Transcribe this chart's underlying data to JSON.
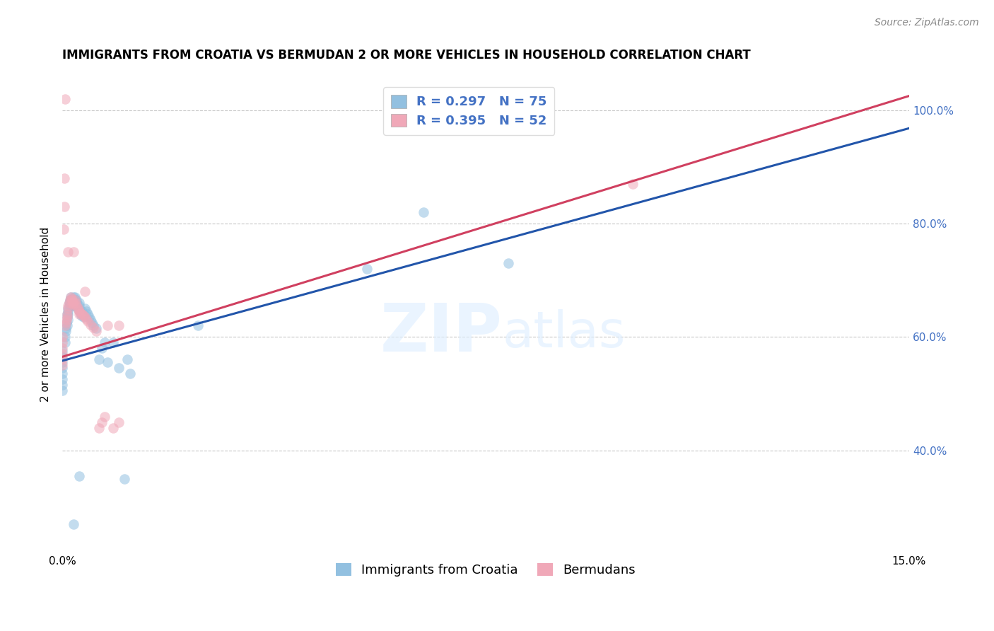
{
  "title": "IMMIGRANTS FROM CROATIA VS BERMUDAN 2 OR MORE VEHICLES IN HOUSEHOLD CORRELATION CHART",
  "source": "Source: ZipAtlas.com",
  "ylabel": "2 or more Vehicles in Household",
  "xlim": [
    0.0,
    0.15
  ],
  "ylim": [
    0.22,
    1.06
  ],
  "xtick_labels": [
    "0.0%",
    "15.0%"
  ],
  "ytick_labels": [
    "40.0%",
    "60.0%",
    "80.0%",
    "100.0%"
  ],
  "ytick_positions": [
    0.4,
    0.6,
    0.8,
    1.0
  ],
  "xtick_positions": [
    0.0,
    0.15
  ],
  "blue_R": 0.297,
  "blue_N": 75,
  "pink_R": 0.395,
  "pink_N": 52,
  "blue_color": "#92c0e0",
  "pink_color": "#f0a8b8",
  "blue_line_color": "#2255aa",
  "pink_line_color": "#d04060",
  "legend_label_blue": "Immigrants from Croatia",
  "legend_label_pink": "Bermudans",
  "watermark_zip": "ZIP",
  "watermark_atlas": "atlas",
  "background_color": "#ffffff",
  "blue_scatter_x": [
    0.0,
    0.0,
    0.0,
    0.0,
    0.0,
    0.0,
    0.0,
    0.0,
    0.0005,
    0.0005,
    0.0006,
    0.0006,
    0.0007,
    0.0008,
    0.0008,
    0.0009,
    0.001,
    0.001,
    0.001,
    0.001,
    0.0012,
    0.0012,
    0.0013,
    0.0013,
    0.0015,
    0.0015,
    0.0015,
    0.0016,
    0.0017,
    0.0018,
    0.0018,
    0.0019,
    0.002,
    0.002,
    0.0021,
    0.0022,
    0.0022,
    0.0023,
    0.0024,
    0.0025,
    0.0025,
    0.0026,
    0.0027,
    0.0028,
    0.003,
    0.003,
    0.0031,
    0.0032,
    0.0033,
    0.0035,
    0.0036,
    0.0037,
    0.004,
    0.0042,
    0.0045,
    0.0048,
    0.005,
    0.0052,
    0.0055,
    0.006,
    0.0065,
    0.007,
    0.0075,
    0.008,
    0.009,
    0.01,
    0.0115,
    0.012,
    0.024,
    0.054,
    0.064,
    0.079,
    0.011,
    0.003,
    0.002
  ],
  "blue_scatter_y": [
    0.575,
    0.565,
    0.555,
    0.545,
    0.535,
    0.525,
    0.515,
    0.505,
    0.6,
    0.59,
    0.615,
    0.61,
    0.625,
    0.62,
    0.64,
    0.635,
    0.65,
    0.645,
    0.64,
    0.63,
    0.66,
    0.655,
    0.665,
    0.66,
    0.67,
    0.665,
    0.66,
    0.655,
    0.66,
    0.665,
    0.66,
    0.655,
    0.67,
    0.665,
    0.66,
    0.665,
    0.67,
    0.66,
    0.655,
    0.66,
    0.665,
    0.658,
    0.652,
    0.648,
    0.66,
    0.655,
    0.648,
    0.642,
    0.638,
    0.645,
    0.64,
    0.635,
    0.65,
    0.645,
    0.64,
    0.635,
    0.63,
    0.625,
    0.62,
    0.615,
    0.56,
    0.58,
    0.59,
    0.555,
    0.59,
    0.545,
    0.56,
    0.535,
    0.62,
    0.72,
    0.82,
    0.73,
    0.35,
    0.355,
    0.27
  ],
  "pink_scatter_x": [
    0.0,
    0.0,
    0.0,
    0.0,
    0.0,
    0.0,
    0.0005,
    0.0006,
    0.0007,
    0.0008,
    0.0009,
    0.001,
    0.001,
    0.0012,
    0.0013,
    0.0015,
    0.0016,
    0.0017,
    0.0018,
    0.0019,
    0.002,
    0.0022,
    0.0023,
    0.0025,
    0.0027,
    0.0028,
    0.003,
    0.0032,
    0.0035,
    0.0038,
    0.004,
    0.0042,
    0.0045,
    0.005,
    0.0055,
    0.006,
    0.0065,
    0.007,
    0.0075,
    0.008,
    0.009,
    0.01,
    0.001,
    0.002,
    0.003,
    0.004,
    0.0002,
    0.0003,
    0.0004,
    0.0005,
    0.101,
    0.01
  ],
  "pink_scatter_y": [
    0.6,
    0.59,
    0.58,
    0.57,
    0.56,
    0.55,
    0.62,
    0.625,
    0.63,
    0.635,
    0.64,
    0.65,
    0.655,
    0.66,
    0.665,
    0.67,
    0.668,
    0.665,
    0.66,
    0.658,
    0.662,
    0.665,
    0.66,
    0.655,
    0.652,
    0.648,
    0.645,
    0.642,
    0.64,
    0.638,
    0.635,
    0.632,
    0.628,
    0.622,
    0.616,
    0.61,
    0.44,
    0.45,
    0.46,
    0.62,
    0.44,
    0.45,
    0.75,
    0.75,
    0.64,
    0.68,
    0.79,
    0.83,
    0.88,
    1.02,
    0.87,
    0.62
  ],
  "blue_line_x": [
    0.0,
    0.15
  ],
  "blue_line_y": [
    0.558,
    0.968
  ],
  "pink_line_x": [
    0.0,
    0.15
  ],
  "pink_line_y": [
    0.565,
    1.025
  ],
  "grid_color": "#c8c8c8",
  "title_fontsize": 12,
  "label_fontsize": 11,
  "tick_fontsize": 11,
  "legend_fontsize": 13,
  "source_fontsize": 10,
  "scatter_size": 110,
  "scatter_alpha": 0.55,
  "right_tick_color": "#4472c4",
  "legend_text_color": "#4472c4"
}
